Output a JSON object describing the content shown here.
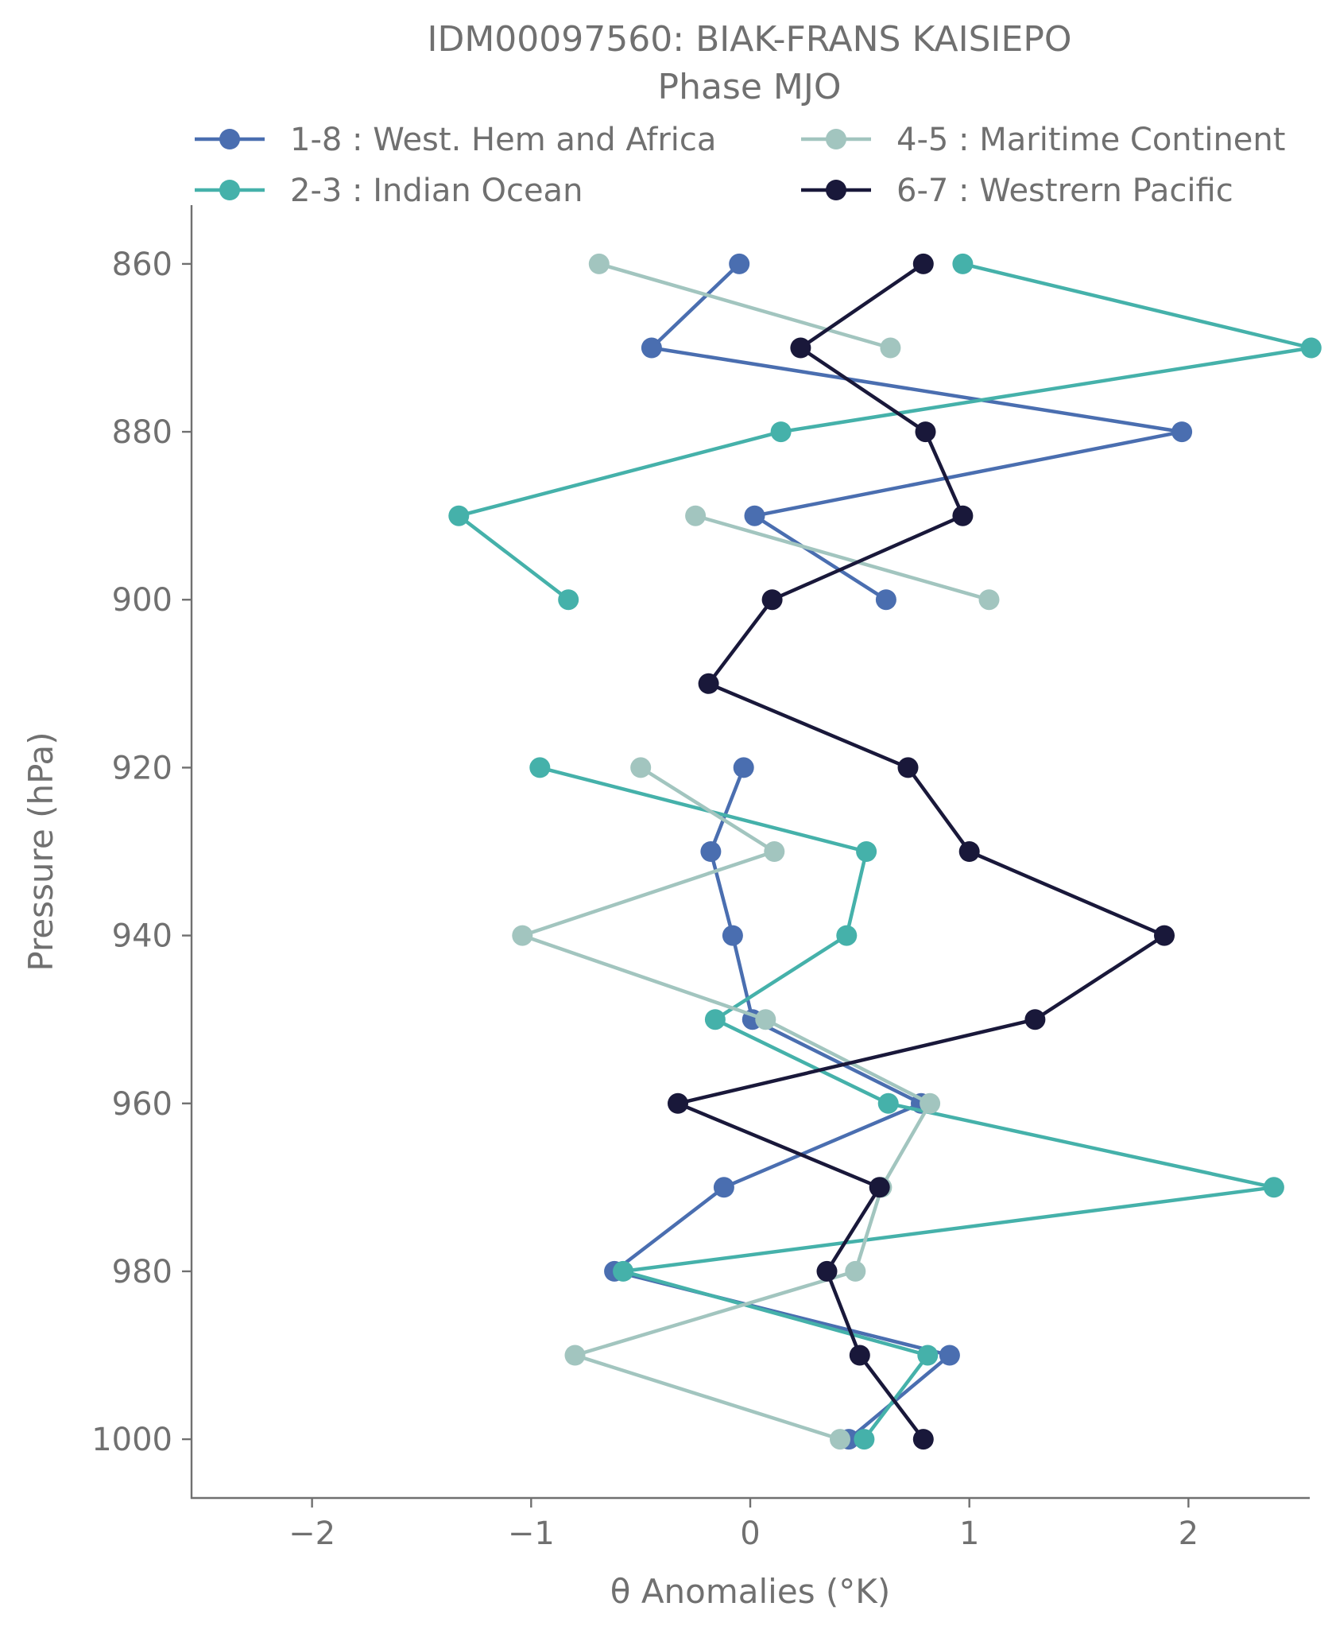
{
  "chart_data": {
    "type": "line",
    "title": "IDM00097560: BIAK-FRANS KAISIEPO",
    "subtitle": "Phase MJO",
    "xlabel": "θ Anomalies (°K)",
    "ylabel": "Pressure (hPa)",
    "xlim": [
      -2.55,
      2.55
    ],
    "ylim": [
      1007,
      853
    ],
    "y_inverted": true,
    "grid": false,
    "legend_position": "top",
    "x_ticks": [
      -2,
      -1,
      0,
      1,
      2
    ],
    "x_tick_labels": [
      "−2",
      "−1",
      "0",
      "1",
      "2"
    ],
    "y_ticks": [
      860,
      880,
      900,
      920,
      940,
      960,
      980,
      1000
    ],
    "y_tick_labels": [
      "860",
      "880",
      "900",
      "920",
      "940",
      "960",
      "980",
      "1000"
    ],
    "pressure_levels": [
      860,
      870,
      880,
      890,
      900,
      910,
      920,
      930,
      940,
      950,
      960,
      970,
      980,
      990,
      1000
    ],
    "series": [
      {
        "name": "1-8 : West. Hem and Africa",
        "color": "#4a6eb0",
        "x": [
          -0.05,
          -0.45,
          1.97,
          0.02,
          0.62,
          null,
          -0.03,
          -0.18,
          -0.08,
          0.01,
          0.78,
          -0.12,
          -0.62,
          0.91,
          0.45
        ],
        "y": [
          860,
          870,
          880,
          890,
          900,
          910,
          920,
          930,
          940,
          950,
          960,
          970,
          980,
          990,
          1000
        ]
      },
      {
        "name": "2-3 : Indian Ocean",
        "color": "#45b1aa",
        "x": [
          0.97,
          2.56,
          0.14,
          -1.33,
          -0.83,
          null,
          -0.96,
          0.53,
          0.44,
          -0.16,
          0.63,
          2.39,
          -0.58,
          0.81,
          0.52
        ],
        "y": [
          860,
          870,
          880,
          890,
          900,
          910,
          920,
          930,
          940,
          950,
          960,
          970,
          980,
          990,
          1000
        ]
      },
      {
        "name": "4-5 : Maritime Continent",
        "color": "#a2c5bf",
        "x": [
          -0.69,
          0.64,
          null,
          -0.25,
          1.09,
          null,
          -0.5,
          0.11,
          -1.04,
          0.07,
          0.82,
          0.6,
          0.48,
          -0.8,
          0.41
        ],
        "y": [
          860,
          870,
          880,
          890,
          900,
          910,
          920,
          930,
          940,
          950,
          960,
          970,
          980,
          990,
          1000
        ]
      },
      {
        "name": "6-7 : Westrern Pacific",
        "color": "#19183a",
        "x": [
          0.79,
          0.23,
          0.8,
          0.97,
          0.1,
          -0.19,
          0.72,
          1.0,
          1.89,
          1.3,
          -0.33,
          0.59,
          0.35,
          0.5,
          0.79
        ],
        "y": [
          860,
          870,
          880,
          890,
          900,
          910,
          920,
          930,
          940,
          950,
          960,
          970,
          980,
          990,
          1000
        ]
      }
    ]
  }
}
